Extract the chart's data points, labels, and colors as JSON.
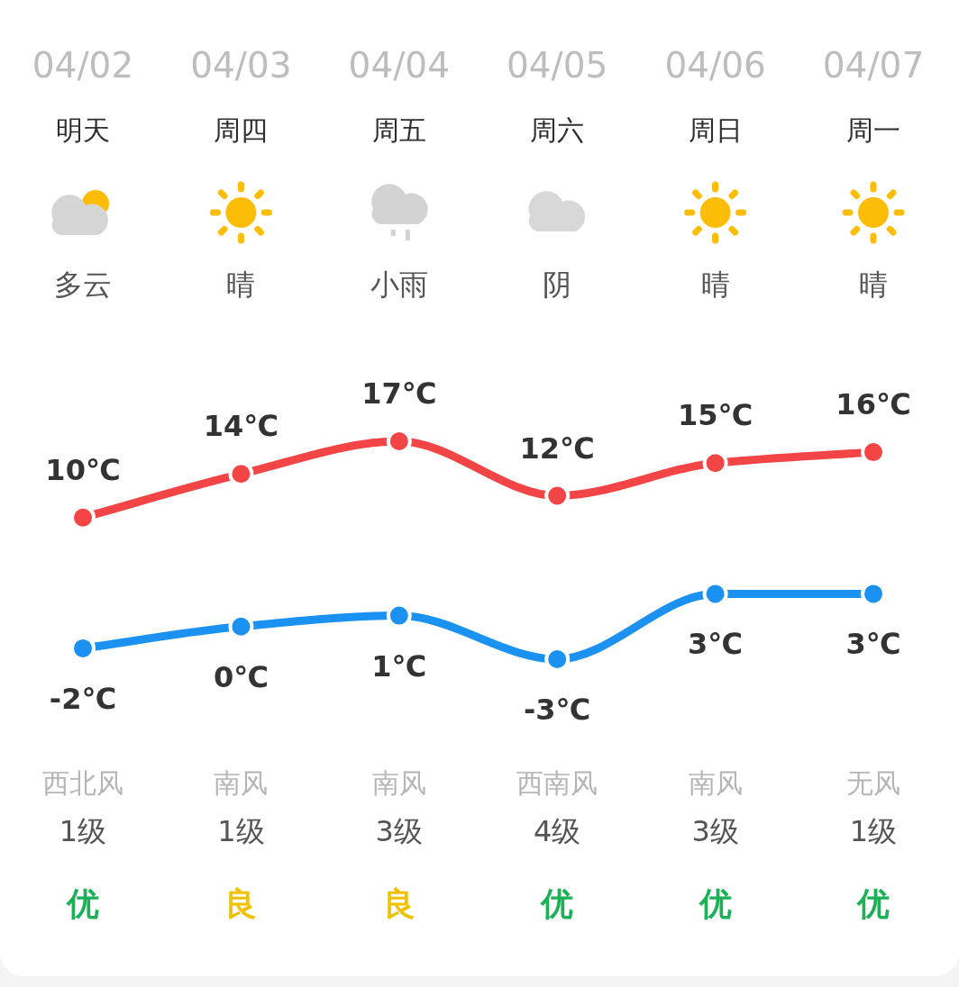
{
  "chart_data": [
    {
      "type": "line",
      "categories": [
        "04/02",
        "04/03",
        "04/04",
        "04/05",
        "04/06",
        "04/07"
      ],
      "tick_labels": "x",
      "marker": "circle",
      "line_style": "solid",
      "series": [
        {
          "color": "#f34545",
          "values": [
            10,
            14,
            17,
            12,
            15,
            16
          ],
          "value_labels": [
            "10℃",
            "14℃",
            "17℃",
            "12℃",
            "15℃",
            "16℃"
          ]
        },
        {
          "color": "#1b91f2",
          "values": [
            -2,
            0,
            1,
            -3,
            3,
            3
          ],
          "value_labels": [
            "-2℃",
            "0℃",
            "1℃",
            "-3℃",
            "3℃",
            "3℃"
          ]
        }
      ],
      "annotations": [
        "明天",
        "周四",
        "周五",
        "周六",
        "周日",
        "周一",
        "多云",
        "晴",
        "小雨",
        "阴",
        "晴",
        "晴",
        "西北风",
        "南风",
        "南风",
        "西南风",
        "南风",
        "无风",
        "1级",
        "1级",
        "3级",
        "4级",
        "3级",
        "1级"
      ]
    },
    {
      "type": "other",
      "categories": [
        "优",
        "良",
        "良",
        "优",
        "优",
        "优"
      ],
      "colors": [
        "#1bb157",
        "#f1c000",
        "#f1c000",
        "#1bb157",
        "#1bb157",
        "#1bb157"
      ]
    }
  ]
}
